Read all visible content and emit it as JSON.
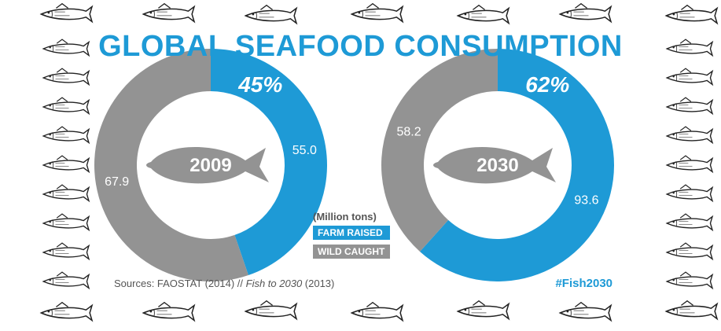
{
  "title": "GLOBAL SEAFOOD CONSUMPTION",
  "colors": {
    "accent": "#1e9ad6",
    "farm": "#1e9ad6",
    "wild": "#939393",
    "fish": "#939393",
    "text_gray": "#555555"
  },
  "legend": {
    "unit": "(Million tons)",
    "farm_label": "FARM RAISED",
    "wild_label": "WILD CAUGHT"
  },
  "sources": {
    "prefix": "Sources: FAOSTAT (2014) // ",
    "italic": "Fish to 2030",
    "suffix": " (2013)"
  },
  "hashtag": "#Fish2030",
  "decor_icons": [
    "fish-icon"
  ],
  "chart_data": [
    {
      "type": "pie",
      "variant": "donut",
      "center_label": "2009",
      "percent_label": "45%",
      "slices": [
        {
          "name": "FARM RAISED",
          "value": 55.0,
          "label": "55.0"
        },
        {
          "name": "WILD CAUGHT",
          "value": 67.9,
          "label": "67.9"
        }
      ]
    },
    {
      "type": "pie",
      "variant": "donut",
      "center_label": "2030",
      "percent_label": "62%",
      "slices": [
        {
          "name": "FARM RAISED",
          "value": 93.6,
          "label": "93.6"
        },
        {
          "name": "WILD CAUGHT",
          "value": 58.2,
          "label": "58.2"
        }
      ]
    }
  ]
}
